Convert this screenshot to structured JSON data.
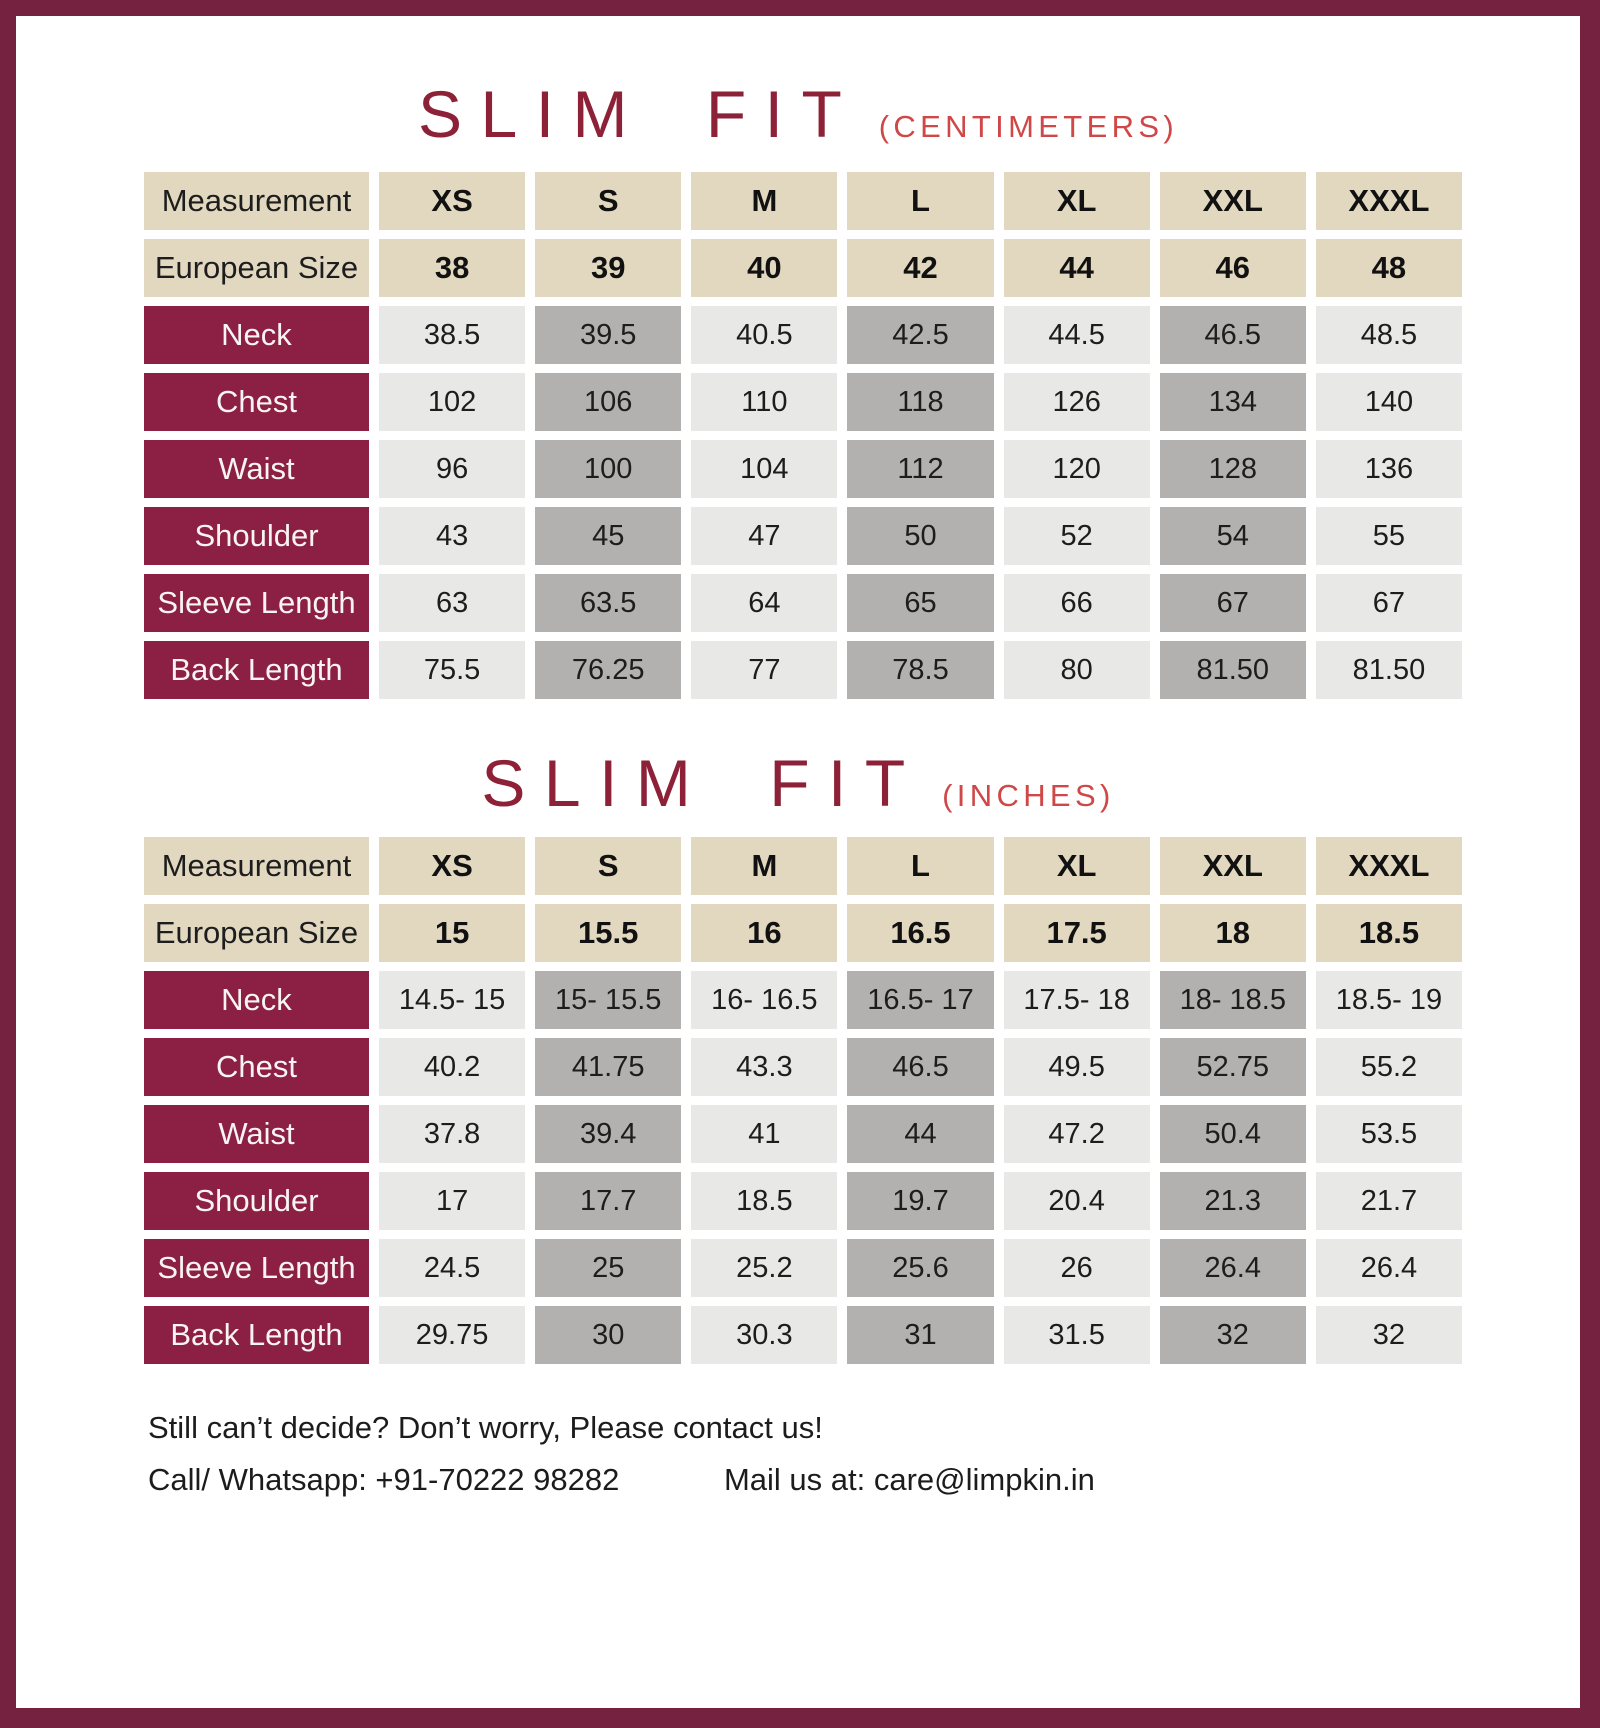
{
  "colors": {
    "frame_maroon": "#752240",
    "row_label_maroon": "#8c2044",
    "title_maroon": "#8d2138",
    "unit_red": "#cf4747",
    "header_tan": "#e2d8c0",
    "cell_light_gray": "#e8e8e7",
    "cell_dark_gray": "#b2b1b0"
  },
  "tables": [
    {
      "title": "SLIM FIT",
      "unit": "(CENTIMETERS)",
      "measurement_label": "Measurement",
      "european_label": "European Size",
      "columns": [
        "XS",
        "S",
        "M",
        "L",
        "XL",
        "XXL",
        "XXXL"
      ],
      "european_sizes": [
        "38",
        "39",
        "40",
        "42",
        "44",
        "46",
        "48"
      ],
      "rows": [
        {
          "label": "Neck",
          "values": [
            "38.5",
            "39.5",
            "40.5",
            "42.5",
            "44.5",
            "46.5",
            "48.5"
          ]
        },
        {
          "label": "Chest",
          "values": [
            "102",
            "106",
            "110",
            "118",
            "126",
            "134",
            "140"
          ]
        },
        {
          "label": "Waist",
          "values": [
            "96",
            "100",
            "104",
            "112",
            "120",
            "128",
            "136"
          ]
        },
        {
          "label": "Shoulder",
          "values": [
            "43",
            "45",
            "47",
            "50",
            "52",
            "54",
            "55"
          ]
        },
        {
          "label": "Sleeve Length",
          "values": [
            "63",
            "63.5",
            "64",
            "65",
            "66",
            "67",
            "67"
          ]
        },
        {
          "label": "Back Length",
          "values": [
            "75.5",
            "76.25",
            "77",
            "78.5",
            "80",
            "81.50",
            "81.50"
          ]
        }
      ]
    },
    {
      "title": "SLIM FIT",
      "unit": "(INCHES)",
      "measurement_label": "Measurement",
      "european_label": "European Size",
      "columns": [
        "XS",
        "S",
        "M",
        "L",
        "XL",
        "XXL",
        "XXXL"
      ],
      "european_sizes": [
        "15",
        "15.5",
        "16",
        "16.5",
        "17.5",
        "18",
        "18.5"
      ],
      "rows": [
        {
          "label": "Neck",
          "values": [
            "14.5- 15",
            "15- 15.5",
            "16- 16.5",
            "16.5- 17",
            "17.5- 18",
            "18- 18.5",
            "18.5- 19"
          ]
        },
        {
          "label": "Chest",
          "values": [
            "40.2",
            "41.75",
            "43.3",
            "46.5",
            "49.5",
            "52.75",
            "55.2"
          ]
        },
        {
          "label": "Waist",
          "values": [
            "37.8",
            "39.4",
            "41",
            "44",
            "47.2",
            "50.4",
            "53.5"
          ]
        },
        {
          "label": "Shoulder",
          "values": [
            "17",
            "17.7",
            "18.5",
            "19.7",
            "20.4",
            "21.3",
            "21.7"
          ]
        },
        {
          "label": "Sleeve Length",
          "values": [
            "24.5",
            "25",
            "25.2",
            "25.6",
            "26",
            "26.4",
            "26.4"
          ]
        },
        {
          "label": "Back Length",
          "values": [
            "29.75",
            "30",
            "30.3",
            "31",
            "31.5",
            "32",
            "32"
          ]
        }
      ]
    }
  ],
  "footer": {
    "line1": "Still can’t decide? Don’t worry, Please contact us!",
    "call": "Call/ Whatsapp: +91-70222 98282",
    "mail": "Mail us at: care@limpkin.in"
  }
}
